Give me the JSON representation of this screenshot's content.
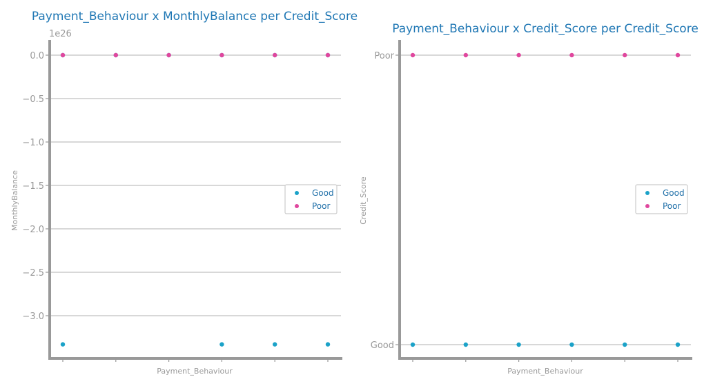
{
  "chart_data": [
    {
      "type": "scatter",
      "title": "Payment_Behaviour x MonthlyBalance per Credit_Score",
      "xlabel": "Payment_Behaviour",
      "ylabel": "MonthlyBalance",
      "y_offset_label": "1e26",
      "x_positions": [
        0,
        1,
        2,
        3,
        4,
        5
      ],
      "ylim": [
        -3.5,
        0.15
      ],
      "yticks": [
        0.0,
        -0.5,
        -1.0,
        -1.5,
        -2.0,
        -2.5,
        -3.0
      ],
      "ytick_labels": [
        "0.0",
        "−0.5",
        "−1.0",
        "−1.5",
        "−2.0",
        "−2.5",
        "−3.0"
      ],
      "grid": "horizontal",
      "legend_position": "center-right",
      "series": [
        {
          "name": "Good",
          "color": "#1ba2c8",
          "points": [
            [
              0,
              -3.33
            ],
            [
              0,
              0
            ],
            [
              1,
              0
            ],
            [
              2,
              0
            ],
            [
              3,
              -3.33
            ],
            [
              3,
              0
            ],
            [
              4,
              -3.33
            ],
            [
              4,
              0
            ],
            [
              5,
              -3.33
            ],
            [
              5,
              0
            ]
          ]
        },
        {
          "name": "Poor",
          "color": "#e0479e",
          "points": [
            [
              0,
              0
            ],
            [
              1,
              0
            ],
            [
              2,
              0
            ],
            [
              3,
              0
            ],
            [
              4,
              0
            ],
            [
              5,
              0
            ]
          ]
        }
      ]
    },
    {
      "type": "scatter",
      "title": "Payment_Behaviour x Credit_Score per Credit_Score",
      "xlabel": "Payment_Behaviour",
      "ylabel": "Credit_Score",
      "x_positions": [
        0,
        1,
        2,
        3,
        4,
        5
      ],
      "categories_y": [
        "Good",
        "Poor"
      ],
      "grid": "horizontal",
      "legend_position": "center-right",
      "series": [
        {
          "name": "Good",
          "color": "#1ba2c8",
          "points": [
            [
              0,
              "Good"
            ],
            [
              1,
              "Good"
            ],
            [
              2,
              "Good"
            ],
            [
              3,
              "Good"
            ],
            [
              4,
              "Good"
            ],
            [
              5,
              "Good"
            ]
          ]
        },
        {
          "name": "Poor",
          "color": "#e0479e",
          "points": [
            [
              0,
              "Poor"
            ],
            [
              1,
              "Poor"
            ],
            [
              2,
              "Poor"
            ],
            [
              3,
              "Poor"
            ],
            [
              4,
              "Poor"
            ],
            [
              5,
              "Poor"
            ]
          ]
        }
      ]
    }
  ]
}
